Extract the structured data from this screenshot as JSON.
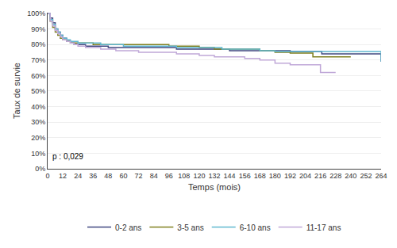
{
  "chart_data": {
    "type": "step",
    "xlabel": "Temps (mois)",
    "ylabel": "Taux de survie",
    "annotations": [
      "p : 0,029"
    ],
    "xlim": [
      0,
      264
    ],
    "ylim": [
      0.0,
      1.005
    ],
    "xticks": [
      0,
      12,
      24,
      36,
      48,
      60,
      72,
      84,
      96,
      108,
      120,
      132,
      144,
      156,
      168,
      180,
      192,
      204,
      216,
      228,
      240,
      252,
      264
    ],
    "yticks": [
      {
        "value": 0.0,
        "label": "0%"
      },
      {
        "value": 0.1,
        "label": "10%"
      },
      {
        "value": 0.2,
        "label": "20%"
      },
      {
        "value": 0.3,
        "label": "30%"
      },
      {
        "value": 0.4,
        "label": "40%"
      },
      {
        "value": 0.5,
        "label": "50%"
      },
      {
        "value": 0.6,
        "label": "60%"
      },
      {
        "value": 0.7,
        "label": "70%"
      },
      {
        "value": 0.8,
        "label": "80%"
      },
      {
        "value": 0.9,
        "label": "90%"
      },
      {
        "value": 1.0,
        "label": "100%"
      }
    ],
    "grid": "y",
    "legend": "bottom",
    "series": [
      {
        "name": "0-2 ans",
        "color": "#404880",
        "x": [
          0,
          2,
          4,
          6,
          8,
          10,
          12,
          15,
          18,
          21,
          24,
          27,
          30,
          33,
          36,
          42,
          48,
          54,
          60,
          66,
          72,
          78,
          84,
          90,
          96,
          102,
          108,
          114,
          120,
          126,
          132,
          138,
          144,
          150,
          156,
          162,
          168,
          174,
          180,
          186,
          192,
          198,
          204,
          210,
          216,
          217,
          222,
          228,
          240,
          252,
          264
        ],
        "values": [
          1.0,
          0.97,
          0.94,
          0.9,
          0.88,
          0.86,
          0.84,
          0.82,
          0.81,
          0.8,
          0.8,
          0.8,
          0.79,
          0.79,
          0.79,
          0.79,
          0.78,
          0.78,
          0.78,
          0.78,
          0.78,
          0.78,
          0.78,
          0.78,
          0.78,
          0.77,
          0.77,
          0.77,
          0.77,
          0.77,
          0.77,
          0.77,
          0.76,
          0.76,
          0.76,
          0.76,
          0.76,
          0.76,
          0.76,
          0.76,
          0.755,
          0.755,
          0.755,
          0.755,
          0.755,
          0.74,
          0.74,
          0.74,
          0.74,
          0.74,
          0.69
        ]
      },
      {
        "name": "3-5 ans",
        "color": "#808020",
        "x": [
          0,
          2,
          4,
          6,
          8,
          10,
          12,
          15,
          18,
          21,
          24,
          27,
          30,
          33,
          36,
          42,
          48,
          54,
          60,
          66,
          72,
          78,
          84,
          90,
          96,
          102,
          108,
          114,
          120,
          126,
          132,
          138,
          144,
          150,
          156,
          162,
          168,
          174,
          180,
          186,
          192,
          198,
          204,
          210,
          216,
          228,
          240
        ],
        "values": [
          1.0,
          0.95,
          0.91,
          0.88,
          0.86,
          0.84,
          0.83,
          0.82,
          0.81,
          0.81,
          0.81,
          0.81,
          0.81,
          0.81,
          0.8,
          0.8,
          0.8,
          0.8,
          0.8,
          0.8,
          0.8,
          0.8,
          0.8,
          0.8,
          0.79,
          0.79,
          0.79,
          0.79,
          0.78,
          0.78,
          0.77,
          0.77,
          0.77,
          0.77,
          0.77,
          0.77,
          0.76,
          0.76,
          0.75,
          0.75,
          0.745,
          0.745,
          0.745,
          0.72,
          0.72,
          0.72,
          0.72
        ]
      },
      {
        "name": "6-10 ans",
        "color": "#60b8d0",
        "x": [
          0,
          2,
          4,
          6,
          8,
          10,
          12,
          15,
          18,
          21,
          24,
          27,
          30,
          33,
          36,
          42,
          48,
          54,
          60,
          66,
          72,
          78,
          84,
          90,
          96,
          102,
          108,
          114,
          120,
          126,
          132,
          138,
          144,
          150,
          156,
          162,
          168,
          174,
          180,
          186,
          192,
          198,
          204,
          210,
          216,
          222,
          228,
          240,
          252,
          264
        ],
        "values": [
          1.0,
          0.96,
          0.93,
          0.9,
          0.88,
          0.86,
          0.84,
          0.83,
          0.82,
          0.82,
          0.81,
          0.81,
          0.81,
          0.81,
          0.81,
          0.8,
          0.8,
          0.8,
          0.79,
          0.79,
          0.79,
          0.79,
          0.79,
          0.79,
          0.79,
          0.78,
          0.78,
          0.78,
          0.78,
          0.78,
          0.78,
          0.77,
          0.77,
          0.77,
          0.77,
          0.77,
          0.76,
          0.76,
          0.755,
          0.755,
          0.755,
          0.755,
          0.755,
          0.755,
          0.755,
          0.755,
          0.755,
          0.755,
          0.755,
          0.69
        ]
      },
      {
        "name": "11-17 ans",
        "color": "#c0a8d8",
        "x": [
          0,
          2,
          4,
          6,
          8,
          10,
          12,
          15,
          18,
          21,
          24,
          27,
          30,
          33,
          36,
          42,
          48,
          54,
          60,
          66,
          72,
          78,
          84,
          90,
          96,
          102,
          108,
          114,
          120,
          126,
          132,
          138,
          144,
          150,
          156,
          162,
          168,
          174,
          180,
          186,
          192,
          198,
          204,
          210,
          216,
          222,
          228
        ],
        "values": [
          1.0,
          0.95,
          0.92,
          0.89,
          0.87,
          0.85,
          0.83,
          0.82,
          0.81,
          0.8,
          0.79,
          0.79,
          0.78,
          0.78,
          0.78,
          0.77,
          0.77,
          0.76,
          0.76,
          0.76,
          0.75,
          0.75,
          0.75,
          0.75,
          0.75,
          0.74,
          0.74,
          0.74,
          0.73,
          0.73,
          0.72,
          0.72,
          0.72,
          0.72,
          0.71,
          0.71,
          0.7,
          0.7,
          0.68,
          0.68,
          0.67,
          0.67,
          0.67,
          0.67,
          0.62,
          0.62,
          0.62
        ]
      }
    ]
  }
}
